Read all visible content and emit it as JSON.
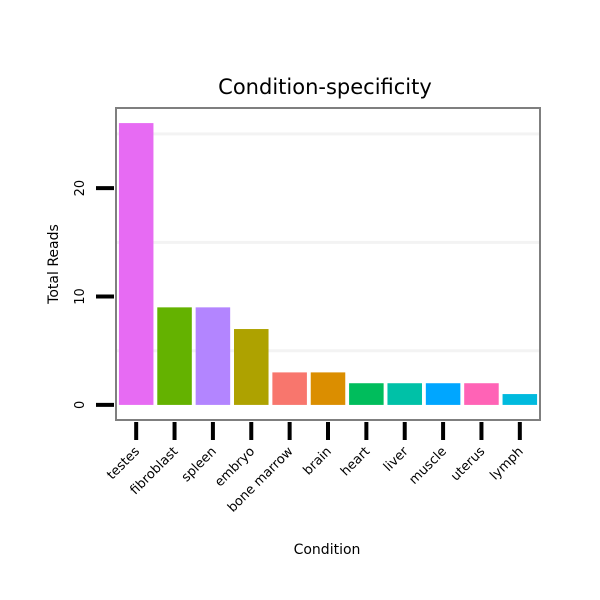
{
  "chart_data": {
    "type": "bar",
    "title": "Condition-specificity",
    "xlabel": "Condition",
    "ylabel": "Total Reads",
    "categories": [
      "testes",
      "fibroblast",
      "spleen",
      "embryo",
      "bone marrow",
      "brain",
      "heart",
      "liver",
      "muscle",
      "uterus",
      "lymph"
    ],
    "values": [
      26,
      9,
      9,
      7,
      3,
      3,
      2,
      2,
      2,
      2,
      1
    ],
    "colors": [
      "#E76BF3",
      "#64B200",
      "#B385FF",
      "#AEA200",
      "#F8766D",
      "#DB8E00",
      "#00BD5C",
      "#00C1A7",
      "#00A6FF",
      "#FF63B6",
      "#00BADE"
    ],
    "ylim": [
      -1.3,
      27.3
    ],
    "yticks": [
      0,
      10,
      20
    ],
    "ytick_labels": [
      "0",
      "10",
      "20"
    ],
    "minor_gridlines": [
      5,
      15,
      25
    ],
    "grid": true,
    "legend": "none"
  }
}
